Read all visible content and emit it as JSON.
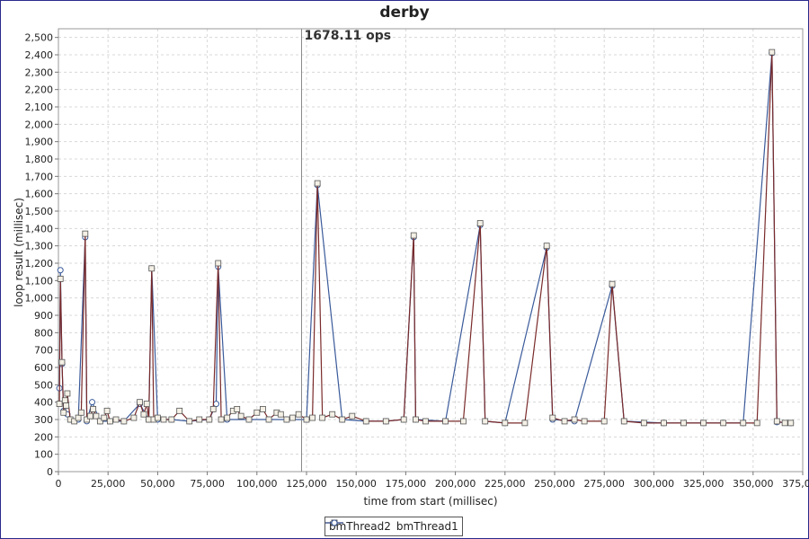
{
  "chart_data": {
    "type": "line",
    "title": "derby",
    "xlabel": "time from start (millisec)",
    "ylabel": "loop result (millisec)",
    "xlim": [
      0,
      375000
    ],
    "ylim": [
      0,
      2550
    ],
    "xticks": [
      0,
      25000,
      50000,
      75000,
      100000,
      125000,
      150000,
      175000,
      200000,
      225000,
      250000,
      275000,
      300000,
      325000,
      350000,
      375000
    ],
    "yticks": [
      0,
      100,
      200,
      300,
      400,
      500,
      600,
      700,
      800,
      900,
      1000,
      1100,
      1200,
      1300,
      1400,
      1500,
      1600,
      1700,
      1800,
      1900,
      2000,
      2100,
      2200,
      2300,
      2400,
      2500
    ],
    "grid": true,
    "legend_position": "bottom-center",
    "marker_annotation": {
      "x": 122500,
      "label": "1678.11 ops"
    },
    "series": [
      {
        "name": "bmThread2",
        "color": "#7a2a2a",
        "marker": "square",
        "points": [
          [
            500,
            390
          ],
          [
            1000,
            1110
          ],
          [
            1800,
            630
          ],
          [
            2600,
            340
          ],
          [
            3300,
            410
          ],
          [
            3900,
            380
          ],
          [
            4500,
            450
          ],
          [
            6000,
            300
          ],
          [
            8000,
            290
          ],
          [
            10000,
            310
          ],
          [
            11500,
            340
          ],
          [
            13500,
            1370
          ],
          [
            14300,
            300
          ],
          [
            16000,
            320
          ],
          [
            17500,
            360
          ],
          [
            19000,
            320
          ],
          [
            21000,
            290
          ],
          [
            23000,
            310
          ],
          [
            24500,
            350
          ],
          [
            26000,
            290
          ],
          [
            29000,
            300
          ],
          [
            33000,
            290
          ],
          [
            38000,
            310
          ],
          [
            41000,
            400
          ],
          [
            43000,
            330
          ],
          [
            44500,
            390
          ],
          [
            45500,
            300
          ],
          [
            47000,
            1170
          ],
          [
            48000,
            300
          ],
          [
            50000,
            310
          ],
          [
            53000,
            300
          ],
          [
            57000,
            300
          ],
          [
            61000,
            350
          ],
          [
            66000,
            290
          ],
          [
            71000,
            300
          ],
          [
            76000,
            300
          ],
          [
            78000,
            360
          ],
          [
            80500,
            1200
          ],
          [
            82000,
            300
          ],
          [
            85000,
            310
          ],
          [
            88000,
            350
          ],
          [
            90000,
            360
          ],
          [
            92000,
            320
          ],
          [
            96000,
            300
          ],
          [
            100000,
            340
          ],
          [
            103000,
            360
          ],
          [
            106000,
            300
          ],
          [
            110000,
            340
          ],
          [
            112000,
            330
          ],
          [
            115000,
            300
          ],
          [
            118000,
            310
          ],
          [
            121000,
            330
          ],
          [
            125000,
            300
          ],
          [
            128000,
            310
          ],
          [
            130500,
            1660
          ],
          [
            133000,
            310
          ],
          [
            138000,
            330
          ],
          [
            143000,
            300
          ],
          [
            148000,
            320
          ],
          [
            155000,
            290
          ],
          [
            165000,
            290
          ],
          [
            174000,
            300
          ],
          [
            179000,
            1360
          ],
          [
            180000,
            300
          ],
          [
            185000,
            290
          ],
          [
            195000,
            290
          ],
          [
            204000,
            290
          ],
          [
            212500,
            1430
          ],
          [
            215000,
            290
          ],
          [
            225000,
            280
          ],
          [
            235000,
            280
          ],
          [
            246000,
            1300
          ],
          [
            249000,
            310
          ],
          [
            255000,
            290
          ],
          [
            260000,
            300
          ],
          [
            265000,
            290
          ],
          [
            275000,
            290
          ],
          [
            279000,
            1080
          ],
          [
            285000,
            290
          ],
          [
            295000,
            280
          ],
          [
            305000,
            280
          ],
          [
            315000,
            280
          ],
          [
            325000,
            280
          ],
          [
            335000,
            280
          ],
          [
            345000,
            280
          ],
          [
            352000,
            280
          ],
          [
            359500,
            2415
          ],
          [
            362000,
            290
          ],
          [
            366000,
            280
          ],
          [
            369000,
            280
          ]
        ]
      },
      {
        "name": "bmThread1",
        "color": "#3a5a9a",
        "marker": "circle",
        "points": [
          [
            500,
            480
          ],
          [
            1000,
            1160
          ],
          [
            1800,
            620
          ],
          [
            2600,
            350
          ],
          [
            4500,
            330
          ],
          [
            6000,
            300
          ],
          [
            10000,
            300
          ],
          [
            13500,
            1350
          ],
          [
            14300,
            290
          ],
          [
            17000,
            400
          ],
          [
            21000,
            290
          ],
          [
            26000,
            290
          ],
          [
            33000,
            290
          ],
          [
            41000,
            390
          ],
          [
            45500,
            300
          ],
          [
            47000,
            1170
          ],
          [
            50000,
            300
          ],
          [
            57000,
            300
          ],
          [
            66000,
            290
          ],
          [
            76000,
            300
          ],
          [
            79500,
            390
          ],
          [
            80500,
            1180
          ],
          [
            85000,
            300
          ],
          [
            96000,
            300
          ],
          [
            106000,
            300
          ],
          [
            115000,
            300
          ],
          [
            125000,
            300
          ],
          [
            130500,
            1650
          ],
          [
            143000,
            300
          ],
          [
            155000,
            290
          ],
          [
            165000,
            290
          ],
          [
            174000,
            300
          ],
          [
            179000,
            1350
          ],
          [
            180000,
            300
          ],
          [
            195000,
            290
          ],
          [
            212500,
            1420
          ],
          [
            215000,
            290
          ],
          [
            225000,
            280
          ],
          [
            246000,
            1290
          ],
          [
            249000,
            300
          ],
          [
            260000,
            290
          ],
          [
            279000,
            1070
          ],
          [
            285000,
            290
          ],
          [
            305000,
            280
          ],
          [
            325000,
            280
          ],
          [
            345000,
            280
          ],
          [
            359500,
            2410
          ],
          [
            362000,
            285
          ],
          [
            369000,
            280
          ]
        ]
      }
    ]
  }
}
